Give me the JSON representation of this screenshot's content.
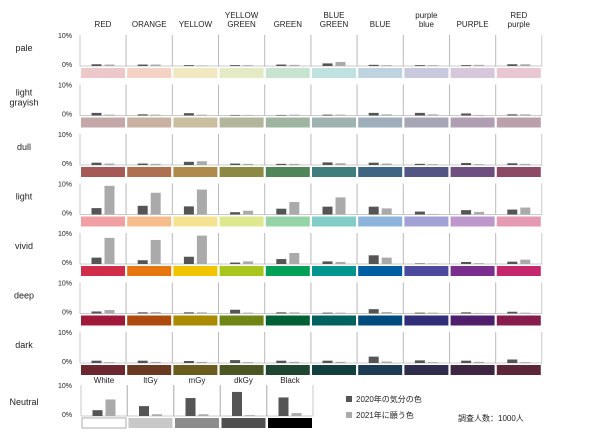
{
  "chart_data": {
    "type": "bar",
    "title": "",
    "xlabel": "",
    "ylabel": "",
    "ylim": [
      0,
      10
    ],
    "y_tick_labels": [
      "10%",
      "0%"
    ],
    "grid": false,
    "hues": [
      "RED",
      "ORANGE",
      "YELLOW",
      "YELLOW GREEN",
      "GREEN",
      "BLUE GREEN",
      "BLUE",
      "purple blue",
      "PURPLE",
      "RED purple"
    ],
    "tones": [
      {
        "name": "pale",
        "colors": [
          "#EDC8CA",
          "#F4D3C4",
          "#F1E8C2",
          "#E4EAC4",
          "#C7E4D1",
          "#BFE1E0",
          "#BFD2E0",
          "#C9C9DE",
          "#D6C7DD",
          "#E8C7D2"
        ],
        "series": [
          {
            "name": "2020年の気分の色",
            "values": [
              0.6,
              0.5,
              0.3,
              0.3,
              0.5,
              0.9,
              0.4,
              0.3,
              0.3,
              0.6
            ]
          },
          {
            "name": "2021年に願う色",
            "values": [
              0.5,
              0.5,
              0.2,
              0.3,
              0.4,
              1.4,
              0.3,
              0.3,
              0.4,
              0.6
            ]
          }
        ]
      },
      {
        "name": "light grayish",
        "colors": [
          "#C4A8A8",
          "#C8B0A3",
          "#C9BE9F",
          "#B4B69C",
          "#9FB5A2",
          "#9DB3B2",
          "#9EAEBB",
          "#A7A6B7",
          "#B09FB2",
          "#BAA0AB"
        ],
        "series": [
          {
            "name": "2020年の気分の色",
            "values": [
              0.9,
              0.4,
              0.8,
              0.2,
              0.2,
              0.3,
              0.9,
              0.9,
              0.7,
              0.4
            ]
          },
          {
            "name": "2021年に願う色",
            "values": [
              0.3,
              0.3,
              0.3,
              0.2,
              0.3,
              0.3,
              0.4,
              0.4,
              0.2,
              0.4
            ]
          }
        ]
      },
      {
        "name": "dull",
        "colors": [
          "#A65A58",
          "#AE7050",
          "#AE8A4B",
          "#8A8A45",
          "#4F8559",
          "#3E7E7C",
          "#3E6683",
          "#535583",
          "#6E4F7F",
          "#8C4A64"
        ],
        "series": [
          {
            "name": "2020年の気分の色",
            "values": [
              0.8,
              0.5,
              1.1,
              0.5,
              0.4,
              0.9,
              0.8,
              0.4,
              0.7,
              0.6
            ]
          },
          {
            "name": "2021年に願う色",
            "values": [
              0.5,
              0.4,
              1.3,
              0.4,
              0.4,
              0.6,
              0.5,
              0.3,
              0.3,
              0.4
            ]
          }
        ]
      },
      {
        "name": "light",
        "colors": [
          "#F0A0A2",
          "#F6BC8E",
          "#F6E391",
          "#DEE98F",
          "#96D3A7",
          "#82CDC7",
          "#8DB4DA",
          "#A3A1D6",
          "#BE98CC",
          "#E59AB4"
        ],
        "series": [
          {
            "name": "2020年の気分の色",
            "values": [
              2.2,
              3.0,
              2.8,
              0.8,
              2.0,
              2.7,
              2.7,
              1.0,
              1.5,
              1.7
            ]
          },
          {
            "name": "2021年に願う色",
            "values": [
              9.9,
              7.5,
              8.6,
              1.3,
              4.3,
              5.9,
              2.1,
              0.2,
              0.9,
              2.4
            ]
          }
        ]
      },
      {
        "name": "vivid",
        "colors": [
          "#D12C4A",
          "#E8760E",
          "#F0C400",
          "#A9C61D",
          "#00A058",
          "#00958D",
          "#005FA3",
          "#4B4A9F",
          "#7A2F8E",
          "#C4276B"
        ],
        "series": [
          {
            "name": "2020年の気分の色",
            "values": [
              2.2,
              1.3,
              2.5,
              0.5,
              1.7,
              0.9,
              3.0,
              0.2,
              0.7,
              0.8
            ]
          },
          {
            "name": "2021年に願う色",
            "values": [
              9.0,
              8.3,
              9.8,
              0.9,
              3.8,
              0.7,
              2.2,
              0.2,
              0.3,
              1.5
            ]
          }
        ]
      },
      {
        "name": "deep",
        "colors": [
          "#A0183A",
          "#AC4B0D",
          "#A98A00",
          "#6F8614",
          "#005F35",
          "#00625F",
          "#004B7D",
          "#302E78",
          "#4F1E6C",
          "#861B4C"
        ],
        "series": [
          {
            "name": "2020年の気分の色",
            "values": [
              0.7,
              0.4,
              0.4,
              1.3,
              0.4,
              0.3,
              1.5,
              0.3,
              0.4,
              0.6
            ]
          },
          {
            "name": "2021年に願う色",
            "values": [
              1.2,
              0.5,
              0.4,
              0.3,
              0.4,
              0.3,
              0.5,
              0.3,
              0.2,
              0.3
            ]
          }
        ]
      },
      {
        "name": "dark",
        "colors": [
          "#6C2731",
          "#6A3A22",
          "#6C5C1E",
          "#4C5723",
          "#1F4630",
          "#12403F",
          "#1C3C55",
          "#2E2D4E",
          "#3E2541",
          "#5C2638"
        ],
        "series": [
          {
            "name": "2020年の気分の色",
            "values": [
              0.8,
              0.8,
              0.7,
              1.0,
              0.8,
              0.8,
              2.2,
              0.9,
              0.8,
              1.2
            ]
          },
          {
            "name": "2021年に願う色",
            "values": [
              0.3,
              0.4,
              0.4,
              0.3,
              0.4,
              0.4,
              0.5,
              0.3,
              0.4,
              0.3
            ]
          }
        ]
      }
    ],
    "neutral": {
      "name": "Neutral",
      "categories": [
        "White",
        "ltGy",
        "mGy",
        "dkGy",
        "Black"
      ],
      "colors": [
        "#FFFFFF",
        "#C8C8C8",
        "#8C8C8C",
        "#505050",
        "#000000"
      ],
      "series": [
        {
          "name": "2020年の気分の色",
          "values": [
            2.0,
            3.4,
            6.2,
            8.3,
            6.4
          ]
        },
        {
          "name": "2021年に願う色",
          "values": [
            5.7,
            0.6,
            0.6,
            0.3,
            1.0
          ]
        }
      ]
    },
    "legend": {
      "position": "bottom-right",
      "entries": [
        {
          "label": "2020年の気分の色",
          "color": "#555555"
        },
        {
          "label": "2021年に願う色",
          "color": "#AAAAAA"
        }
      ]
    },
    "annotation": "調査人数：1000人"
  }
}
